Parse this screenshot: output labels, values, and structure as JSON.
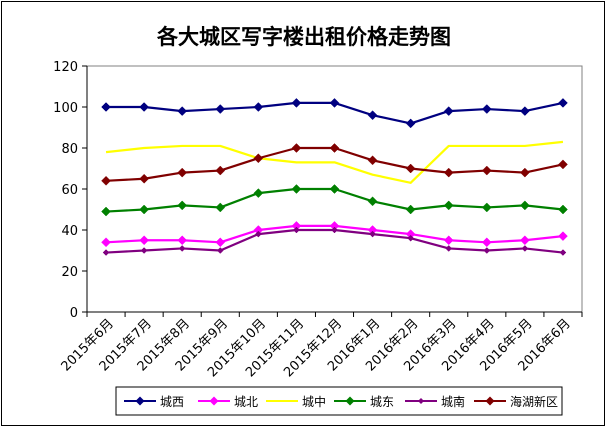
{
  "chart_data": {
    "type": "line",
    "title": "各大城区写字楼出租价格走势图",
    "xlabel": "",
    "ylabel": "",
    "ylim": [
      0,
      120
    ],
    "yticks": [
      0,
      20,
      40,
      60,
      80,
      100,
      120
    ],
    "grid": false,
    "legend_position": "bottom",
    "categories": [
      "2015年6月",
      "2015年7月",
      "2015年8月",
      "2015年9月",
      "2015年10月",
      "2015年11月",
      "2015年12月",
      "2016年1月",
      "2016年2月",
      "2016年3月",
      "2016年4月",
      "2016年5月",
      "2016年6月"
    ],
    "series": [
      {
        "name": "城西",
        "color": "#000080",
        "marker": "diamond",
        "values": [
          100,
          100,
          98,
          99,
          100,
          102,
          102,
          96,
          92,
          98,
          99,
          98,
          102
        ]
      },
      {
        "name": "城北",
        "color": "#ff00ff",
        "marker": "diamond",
        "values": [
          34,
          35,
          35,
          34,
          40,
          42,
          42,
          40,
          38,
          35,
          34,
          35,
          37
        ]
      },
      {
        "name": "城中",
        "color": "#ffff00",
        "marker": "none",
        "values": [
          78,
          80,
          81,
          81,
          75,
          73,
          73,
          67,
          63,
          81,
          81,
          81,
          83
        ]
      },
      {
        "name": "城东",
        "color": "#008000",
        "marker": "diamond",
        "values": [
          49,
          50,
          52,
          51,
          58,
          60,
          60,
          54,
          50,
          52,
          51,
          52,
          50
        ]
      },
      {
        "name": "城南",
        "color": "#800080",
        "marker": "diamond-small",
        "values": [
          29,
          30,
          31,
          30,
          38,
          40,
          40,
          38,
          36,
          31,
          30,
          31,
          29
        ]
      },
      {
        "name": "海湖新区",
        "color": "#800000",
        "marker": "diamond",
        "values": [
          64,
          65,
          68,
          69,
          75,
          80,
          80,
          74,
          70,
          68,
          69,
          68,
          72
        ]
      }
    ]
  }
}
